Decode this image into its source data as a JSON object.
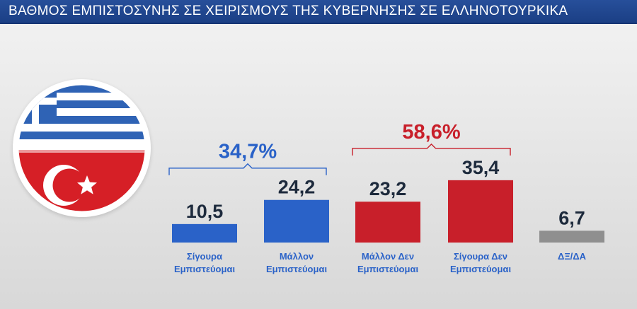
{
  "header": {
    "title": "ΒΑΘΜΟΣ ΕΜΠΙΣΤΟΣΥΝΗΣ ΣΕ ΧΕΙΡΙΣΜΟΥΣ ΤΗΣ ΚΥΒΕΡΝΗΣΗΣ ΣΕ ΕΛΛΗΝΟΤΟΥΡΚΙΚΑ"
  },
  "colors": {
    "title_bar": "#1f4690",
    "blue": "#2a62c8",
    "red": "#c81f2a",
    "gray": "#8f8f8f",
    "value_text": "#1d2a3c"
  },
  "chart_data": {
    "type": "bar",
    "title": "ΒΑΘΜΟΣ ΕΜΠΙΣΤΟΣΥΝΗΣ ΣΕ ΧΕΙΡΙΣΜΟΥΣ ΤΗΣ ΚΥΒΕΡΝΗΣΗΣ ΣΕ ΕΛΛΗΝΟΤΟΥΡΚΙΚΑ",
    "categories": [
      [
        "Σίγουρα",
        "Εμπιστεύομαι"
      ],
      [
        "Μάλλον",
        "Εμπιστεύομαι"
      ],
      [
        "Μάλλον Δεν",
        "Εμπιστεύομαι"
      ],
      [
        "Σίγουρα Δεν",
        "Εμπιστεύομαι"
      ],
      [
        "ΔΞ/ΔΑ"
      ]
    ],
    "values": [
      10.5,
      24.2,
      23.2,
      35.4,
      6.7
    ],
    "value_labels": [
      "10,5",
      "24,2",
      "23,2",
      "35,4",
      "6,7"
    ],
    "bar_colors": [
      "blue",
      "blue",
      "red",
      "red",
      "gray"
    ],
    "groups": [
      {
        "label": "34,7%",
        "from": 0,
        "to": 1,
        "color": "blue"
      },
      {
        "label": "58,6%",
        "from": 2,
        "to": 3,
        "color": "red"
      }
    ],
    "xlabel": "",
    "ylabel": "",
    "grid": false
  }
}
